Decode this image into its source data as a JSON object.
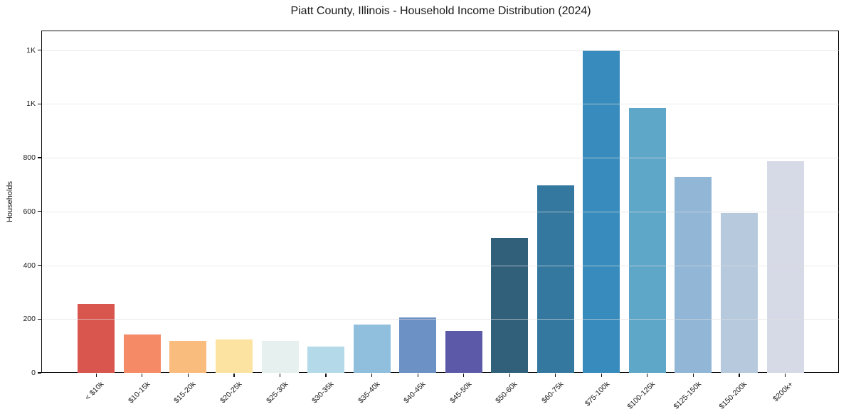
{
  "chart_data": {
    "type": "bar",
    "title": "Piatt County, Illinois - Household Income Distribution (2024)",
    "xlabel": "",
    "ylabel": "Households",
    "categories": [
      "< $10k",
      "$10-15k",
      "$15-20k",
      "$20-25k",
      "$25-30k",
      "$30-35k",
      "$35-40k",
      "$40-45k",
      "$45-50k",
      "$50-60k",
      "$60-75k",
      "$75-100k",
      "$100-125k",
      "$125-150k",
      "$150-200k",
      "$200k+"
    ],
    "values": [
      255,
      143,
      118,
      123,
      119,
      97,
      180,
      207,
      156,
      503,
      698,
      1200,
      985,
      730,
      594,
      788
    ],
    "bar_colors": [
      "#d9564f",
      "#f48a66",
      "#f9bc7d",
      "#fde3a2",
      "#e6f1ef",
      "#b4dae9",
      "#90bedd",
      "#6c91c5",
      "#5c59a8",
      "#31607b",
      "#34789f",
      "#388cbd",
      "#5fa7c9",
      "#91b6d6",
      "#b6c9dd",
      "#d6d9e6"
    ],
    "ylim": [
      0,
      1270
    ],
    "yticks": {
      "values": [
        0,
        200,
        400,
        600,
        800,
        1000,
        1200
      ],
      "labels": [
        "0",
        "200",
        "400",
        "600",
        "800",
        "1K",
        "1K"
      ]
    },
    "grid": "horizontal-on",
    "legend": "none",
    "colors": {
      "background": "#ffffff",
      "grid_color": "#dedede",
      "axis_color": "#0d0d0d",
      "text_color": "#1a1a1a"
    }
  }
}
